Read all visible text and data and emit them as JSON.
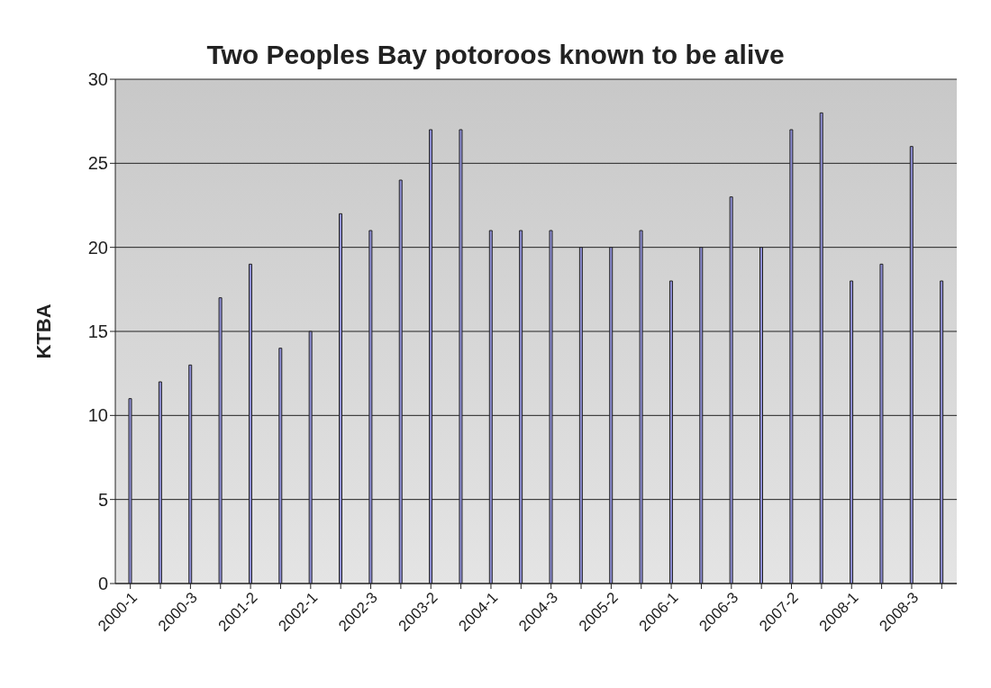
{
  "chart_data": {
    "type": "bar",
    "title": "Two Peoples Bay potoroos known to be alive",
    "ylabel": "KTBA",
    "categories": [
      "2000-1",
      null,
      "2000-3",
      null,
      "2001-2",
      null,
      "2002-1",
      null,
      "2002-3",
      null,
      "2003-2",
      null,
      "2004-1",
      null,
      "2004-3",
      null,
      "2005-2",
      null,
      "2006-1",
      null,
      "2006-3",
      null,
      "2007-2",
      null,
      "2008-1",
      null,
      "2008-3",
      null
    ],
    "values": [
      11,
      12,
      13,
      17,
      19,
      14,
      15,
      22,
      21,
      24,
      27,
      27,
      21,
      21,
      21,
      20,
      20,
      21,
      18,
      20,
      23,
      20,
      27,
      28,
      18,
      19,
      26,
      18
    ],
    "color": "#8f8fd6",
    "ylim": [
      0,
      30
    ],
    "yticks": [
      0,
      5,
      10,
      15,
      20,
      25,
      30
    ],
    "grid": "y",
    "legend": false
  }
}
